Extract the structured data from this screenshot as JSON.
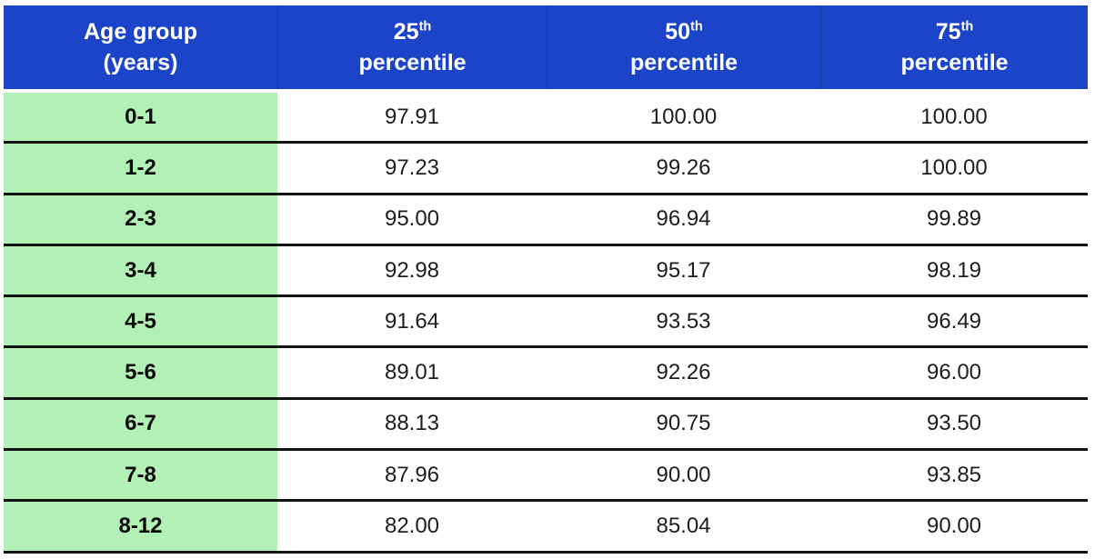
{
  "header": {
    "col_age": {
      "line1": "Age group",
      "line2": "(years)"
    },
    "col_p25": {
      "num": "25",
      "sup": "th",
      "word": "percentile"
    },
    "col_p50": {
      "num": "50",
      "sup": "th",
      "word": "percentile"
    },
    "col_p75": {
      "num": "75",
      "sup": "th",
      "word": "percentile"
    }
  },
  "colors": {
    "header_bg": "#1C44C8",
    "age_column_bg": "#B2F0B6",
    "row_rule": "#141414",
    "header_text": "#FFFFFF",
    "body_text": "#1D1D1D",
    "page_bg": "#FFFFFF"
  },
  "chart_data": {
    "type": "table",
    "title": "",
    "columns": [
      "Age group (years)",
      "25th percentile",
      "50th percentile",
      "75th percentile"
    ],
    "rows": [
      [
        "0-1",
        "97.91",
        "100.00",
        "100.00"
      ],
      [
        "1-2",
        "97.23",
        "99.26",
        "100.00"
      ],
      [
        "2-3",
        "95.00",
        "96.94",
        "99.89"
      ],
      [
        "3-4",
        "92.98",
        "95.17",
        "98.19"
      ],
      [
        "4-5",
        "91.64",
        "93.53",
        "96.49"
      ],
      [
        "5-6",
        "89.01",
        "92.26",
        "96.00"
      ],
      [
        "6-7",
        "88.13",
        "90.75",
        "93.50"
      ],
      [
        "7-8",
        "87.96",
        "90.00",
        "93.85"
      ],
      [
        "8-12",
        "82.00",
        "85.04",
        "90.00"
      ]
    ],
    "layout": {
      "grid": "horizontal-rules-only",
      "age_column_highlight": true,
      "header_style": "blue-bold-centered"
    }
  }
}
